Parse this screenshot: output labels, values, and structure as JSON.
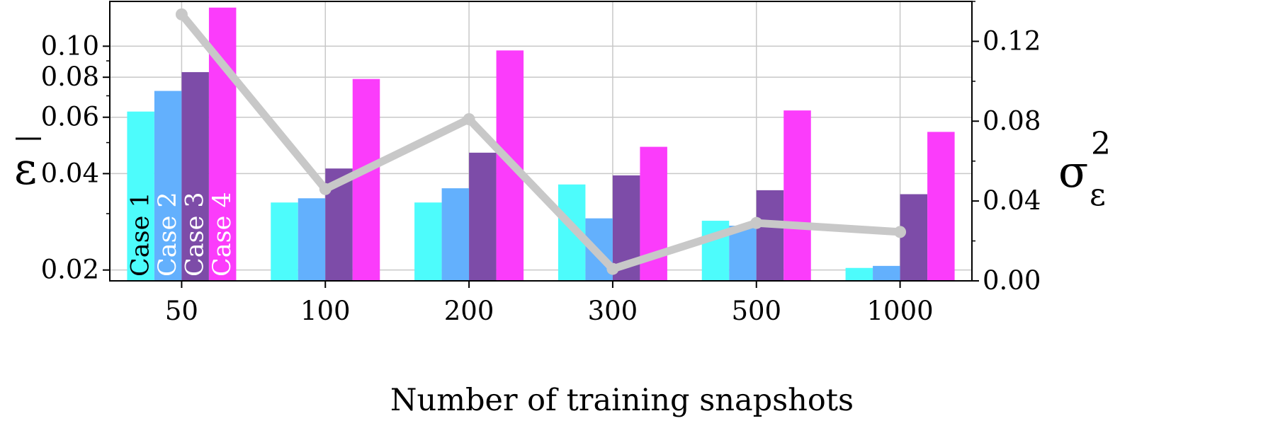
{
  "chart_data": {
    "type": "bar",
    "xlabel": "Number of training snapshots",
    "categories": [
      "50",
      "100",
      "200",
      "300",
      "500",
      "1000"
    ],
    "left_axis": {
      "label_symbol": "ε",
      "scale": "log",
      "ylim": [
        0.0185,
        0.138
      ],
      "ticks": [
        0.02,
        0.04,
        0.06,
        0.08,
        0.1
      ],
      "tick_labels": [
        "0.02",
        "0.04",
        "0.06",
        "0.08",
        "0.10"
      ],
      "minor_ticks": [
        0.03,
        0.05,
        0.07,
        0.09
      ]
    },
    "right_axis": {
      "label_symbol": "σ",
      "label_superscript": "2",
      "label_subscript": "ε",
      "ylim": [
        0.0,
        0.14
      ],
      "ticks": [
        0.0,
        0.04,
        0.08,
        0.12
      ],
      "tick_labels": [
        "0.00",
        "0.04",
        "0.08",
        "0.12"
      ],
      "minor_ticks": [
        0.02,
        0.06,
        0.1,
        0.14
      ]
    },
    "series": [
      {
        "name": "Case 1",
        "color": "#4dfcfc",
        "values": [
          0.0625,
          0.0325,
          0.0325,
          0.037,
          0.0285,
          0.0203
        ]
      },
      {
        "name": "Case 2",
        "color": "#63b0fd",
        "values": [
          0.0725,
          0.0335,
          0.036,
          0.029,
          0.0275,
          0.0206
        ]
      },
      {
        "name": "Case 3",
        "color": "#7d4ca8",
        "values": [
          0.083,
          0.0415,
          0.0465,
          0.0395,
          0.0355,
          0.0345
        ]
      },
      {
        "name": "Case 4",
        "color": "#fb3cfb",
        "values": [
          0.132,
          0.079,
          0.097,
          0.0485,
          0.063,
          0.054
        ]
      }
    ],
    "line_series": {
      "axis": "right",
      "color": "#c8c8c8",
      "values": [
        0.1335,
        0.046,
        0.081,
        0.006,
        0.029,
        0.0245
      ]
    },
    "series_label_colors": [
      "#000000",
      "#ffffff",
      "#ffffff",
      "#ffffff"
    ],
    "grid": true,
    "legend": "rotated labels inside first group bars"
  }
}
